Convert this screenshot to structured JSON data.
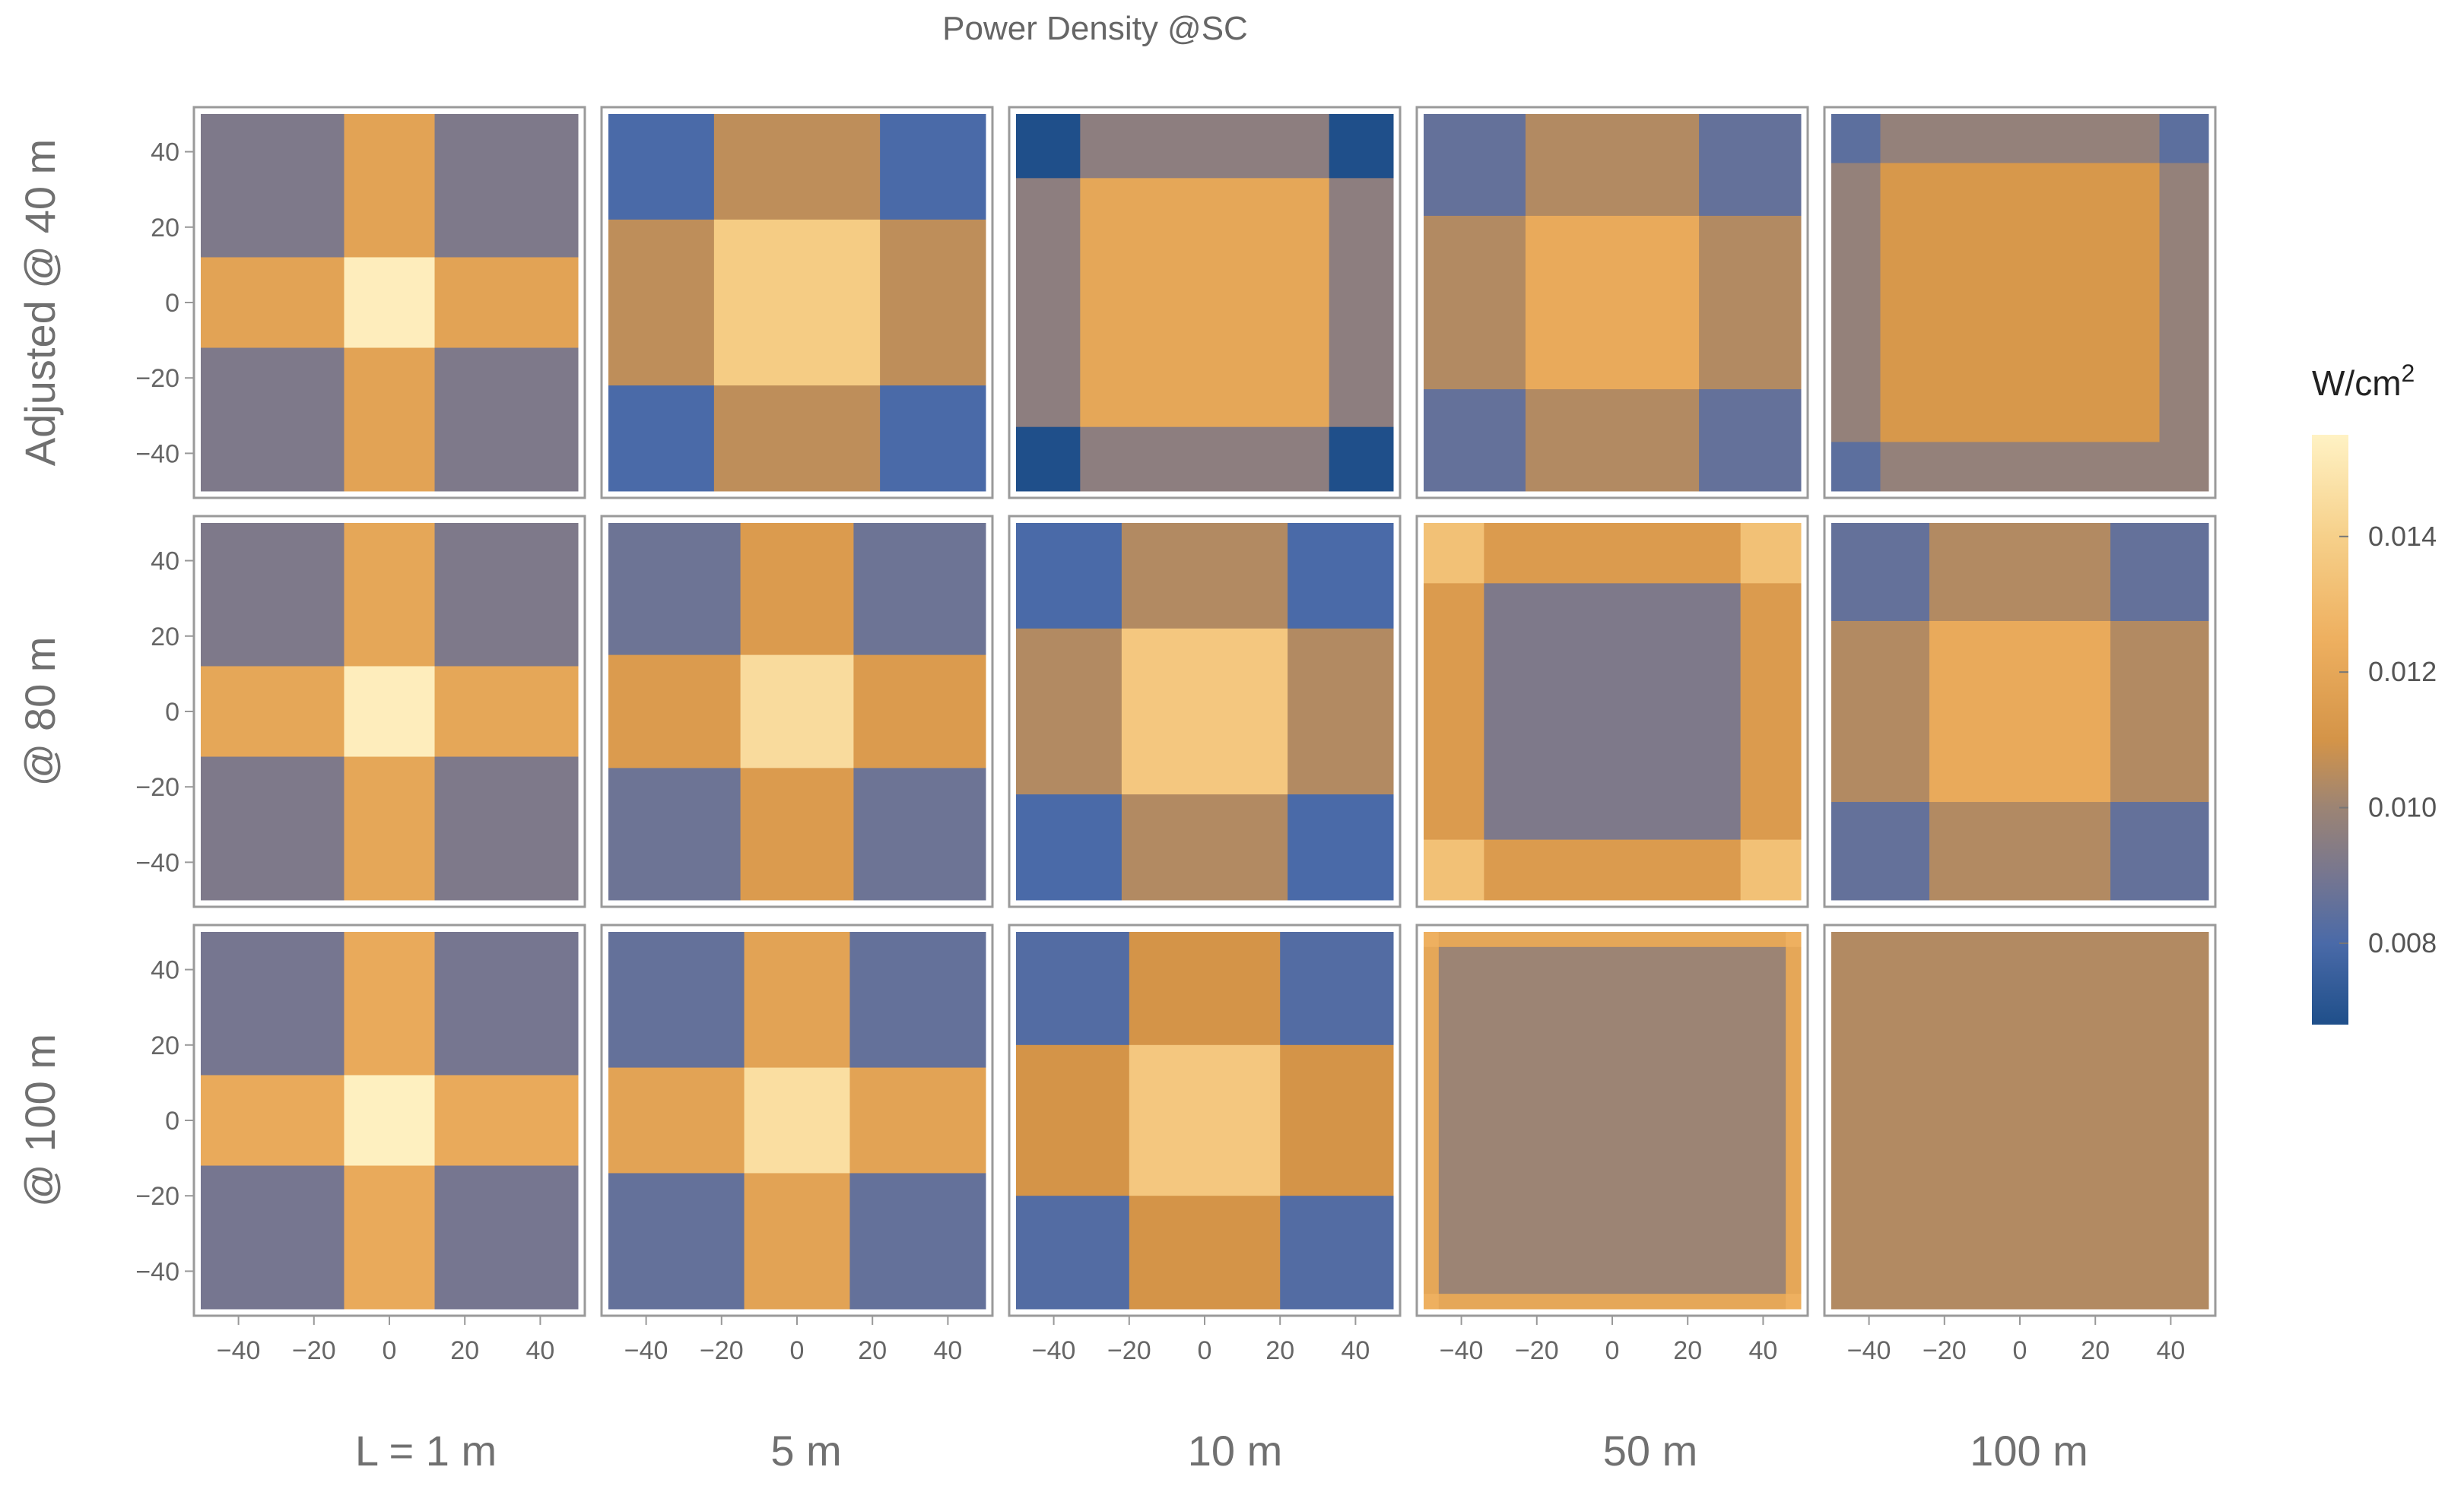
{
  "chart_data": {
    "type": "heatmap",
    "title": "Power Density @SC",
    "colorbar": {
      "unit_base": "W/cm",
      "unit_exp": "2",
      "range": [
        0.0068,
        0.0155
      ],
      "ticks": [
        "0.008",
        "0.010",
        "0.012",
        "0.014"
      ],
      "tick_values": [
        0.008,
        0.01,
        0.012,
        0.014
      ],
      "stops": [
        {
          "v": 0.0068,
          "color": "#1f4f8a"
        },
        {
          "v": 0.008,
          "color": "#4a6aa8"
        },
        {
          "v": 0.009,
          "color": "#767690"
        },
        {
          "v": 0.01,
          "color": "#9c8474"
        },
        {
          "v": 0.011,
          "color": "#d49448"
        },
        {
          "v": 0.0125,
          "color": "#eeb060"
        },
        {
          "v": 0.014,
          "color": "#f6d08a"
        },
        {
          "v": 0.0155,
          "color": "#fff2c4"
        }
      ]
    },
    "axes": {
      "xlim": [
        -50,
        50
      ],
      "ylim": [
        -50,
        50
      ],
      "x_ticks": [
        -40,
        -20,
        0,
        20,
        40
      ],
      "y_ticks": [
        40,
        20,
        0,
        -20,
        -40
      ],
      "x_tick_labels": [
        "−40",
        "−20",
        "0",
        "20",
        "40"
      ],
      "y_tick_labels": [
        "40",
        "20",
        "0",
        "−20",
        "−40"
      ]
    },
    "row_labels": [
      "Adjusted @ 40 m",
      "@ 80 m",
      "@ 100 m"
    ],
    "col_labels": [
      "L = 1 m",
      "5 m",
      "10 m",
      "50 m",
      "100 m"
    ],
    "panels": [
      [
        {
          "edges": [
            12,
            12
          ],
          "values": [
            [
              0.0092,
              0.0118,
              0.0092
            ],
            [
              0.0118,
              0.0153,
              0.0118
            ],
            [
              0.0092,
              0.0118,
              0.0092
            ]
          ]
        },
        {
          "edges": [
            22,
            22
          ],
          "values": [
            [
              0.008,
              0.0106,
              0.008
            ],
            [
              0.0106,
              0.0138,
              0.0106
            ],
            [
              0.008,
              0.0106,
              0.008
            ]
          ]
        },
        {
          "edges": [
            33,
            33
          ],
          "values": [
            [
              0.0068,
              0.0096,
              0.0068
            ],
            [
              0.0096,
              0.012,
              0.0096
            ],
            [
              0.0068,
              0.0096,
              0.0068
            ]
          ]
        },
        {
          "edges": [
            23,
            23
          ],
          "values": [
            [
              0.0086,
              0.0104,
              0.0086
            ],
            [
              0.0104,
              0.0122,
              0.0104
            ],
            [
              0.0086,
              0.0104,
              0.0086
            ]
          ]
        },
        {
          "edges": [
            37,
            37
          ],
          "values": [
            [
              0.0084,
              0.0098,
              0.0084
            ],
            [
              0.0098,
              0.0112,
              0.0098
            ],
            [
              0.0084,
              0.0098,
              0.0098
            ]
          ]
        }
      ],
      [
        {
          "edges": [
            12,
            12
          ],
          "values": [
            [
              0.0092,
              0.012,
              0.0092
            ],
            [
              0.012,
              0.0153,
              0.012
            ],
            [
              0.0092,
              0.012,
              0.0092
            ]
          ]
        },
        {
          "edges": [
            15,
            15
          ],
          "values": [
            [
              0.0088,
              0.0114,
              0.0088
            ],
            [
              0.0114,
              0.0145,
              0.0114
            ],
            [
              0.0088,
              0.0114,
              0.0088
            ]
          ]
        },
        {
          "edges": [
            22,
            22
          ],
          "values": [
            [
              0.008,
              0.0104,
              0.008
            ],
            [
              0.0104,
              0.0136,
              0.0104
            ],
            [
              0.008,
              0.0104,
              0.008
            ]
          ]
        },
        {
          "edges": [
            34,
            34
          ],
          "values": [
            [
              0.0133,
              0.0114,
              0.0133
            ],
            [
              0.0114,
              0.0092,
              0.0114
            ],
            [
              0.0133,
              0.0114,
              0.0133
            ]
          ]
        },
        {
          "edges": [
            24,
            24
          ],
          "values": [
            [
              0.0086,
              0.0104,
              0.0086
            ],
            [
              0.0104,
              0.0122,
              0.0104
            ],
            [
              0.0086,
              0.0104,
              0.0086
            ]
          ]
        }
      ],
      [
        {
          "edges": [
            12,
            12
          ],
          "values": [
            [
              0.009,
              0.0122,
              0.009
            ],
            [
              0.0122,
              0.0154,
              0.0122
            ],
            [
              0.009,
              0.0122,
              0.009
            ]
          ]
        },
        {
          "edges": [
            14,
            14
          ],
          "values": [
            [
              0.0086,
              0.0118,
              0.0086
            ],
            [
              0.0118,
              0.0146,
              0.0118
            ],
            [
              0.0086,
              0.0118,
              0.0086
            ]
          ]
        },
        {
          "edges": [
            20,
            20
          ],
          "values": [
            [
              0.0082,
              0.011,
              0.0082
            ],
            [
              0.011,
              0.0136,
              0.011
            ],
            [
              0.0082,
              0.011,
              0.0082
            ]
          ]
        },
        {
          "edges": [
            46,
            46
          ],
          "values": [
            [
              0.0125,
              0.012,
              0.0125
            ],
            [
              0.012,
              0.01,
              0.012
            ],
            [
              0.0125,
              0.012,
              0.0125
            ]
          ]
        },
        {
          "edges": [
            50,
            50
          ],
          "values": [
            [
              0.0104,
              0.0104,
              0.0104
            ],
            [
              0.0104,
              0.0104,
              0.0104
            ],
            [
              0.0104,
              0.0104,
              0.0104
            ]
          ]
        }
      ]
    ]
  }
}
